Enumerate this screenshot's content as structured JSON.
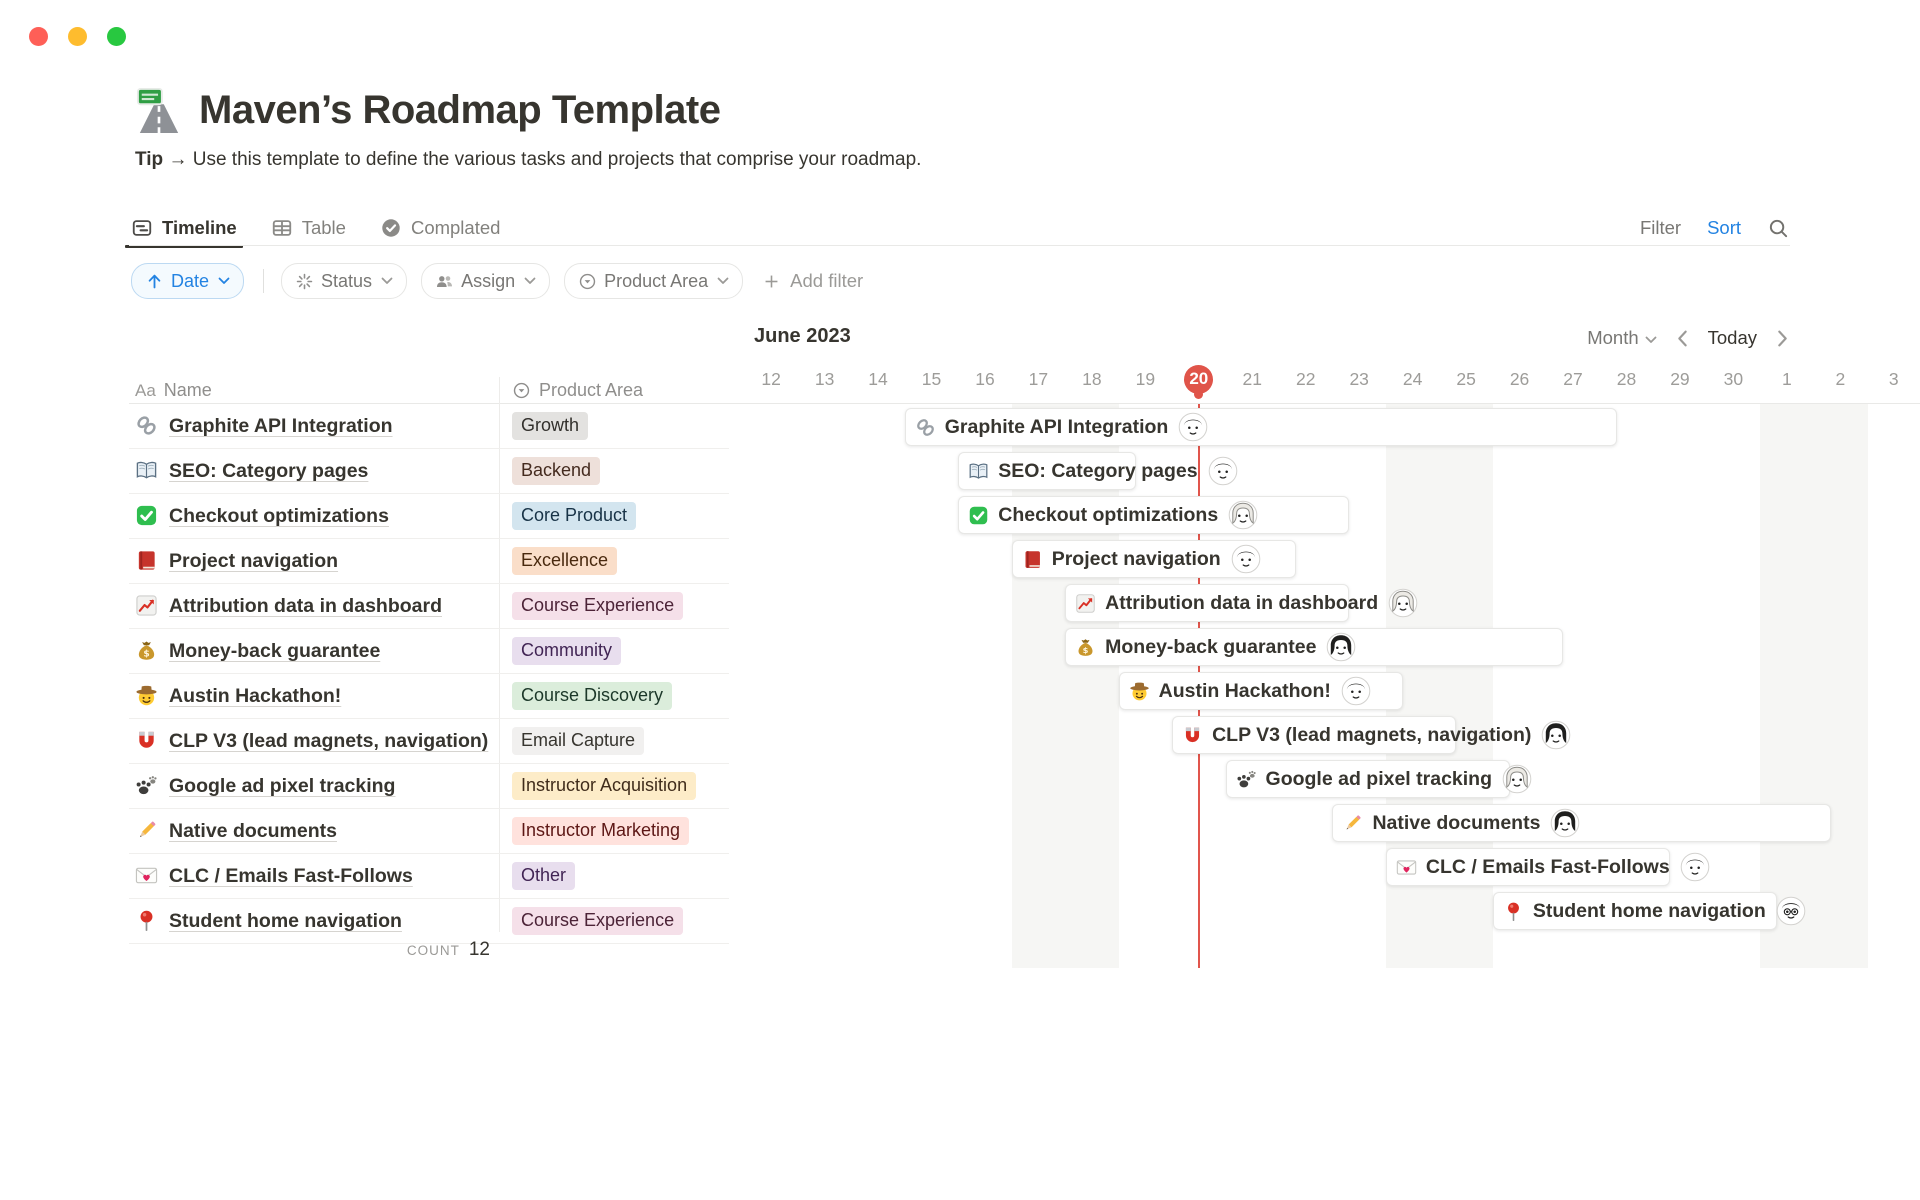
{
  "window": {
    "traffic_lights": [
      "#FE5F57",
      "#FEBC2E",
      "#28C840"
    ]
  },
  "page": {
    "emoji_icon": "motorway-emoji",
    "title": "Maven’s Roadmap Template",
    "tip_label": "Tip",
    "tip_arrow": "→",
    "tip_text": "Use this template to define the various tasks and projects that comprise your roadmap."
  },
  "view_tabs": {
    "tabs": [
      {
        "label": "Timeline",
        "icon": "timeline-view-icon",
        "active": true
      },
      {
        "label": "Table",
        "icon": "table-view-icon",
        "active": false
      },
      {
        "label": "Complated",
        "icon": "check-circle-icon",
        "active": false
      }
    ],
    "filter_label": "Filter",
    "sort_label": "Sort",
    "search_icon": "search-icon"
  },
  "filter_bar": {
    "sort_chip": {
      "label": "Date",
      "icon": "arrow-up-icon"
    },
    "chips": [
      {
        "label": "Status",
        "icon": "status-icon"
      },
      {
        "label": "Assign",
        "icon": "people-icon"
      },
      {
        "label": "Product Area",
        "icon": "select-icon"
      }
    ],
    "add_filter_label": "Add filter"
  },
  "table": {
    "name_column": {
      "icon_label": "Aa",
      "label": "Name"
    },
    "area_column": {
      "icon": "select-icon",
      "label": "Product Area"
    },
    "count_label": "COUNT",
    "count_value": "12"
  },
  "timeline": {
    "month_title": "June 2023",
    "zoom_label": "Month",
    "today_label": "Today",
    "days": [
      "12",
      "13",
      "14",
      "15",
      "16",
      "17",
      "18",
      "19",
      "20",
      "21",
      "22",
      "23",
      "24",
      "25",
      "26",
      "27",
      "28",
      "29",
      "30",
      "1",
      "2",
      "3"
    ],
    "today_index": 8,
    "weekend_indices": [
      5,
      6,
      12,
      13,
      19,
      20
    ]
  },
  "rows": [
    {
      "icon": "link-emoji",
      "name": "Graphite API Integration",
      "area": "Growth",
      "color": "gray",
      "avatar": "man",
      "start": 3,
      "span": 13
    },
    {
      "icon": "open-book-emoji",
      "name": "SEO: Category pages",
      "area": "Backend",
      "color": "brown",
      "avatar": "man",
      "start": 4,
      "span": 3
    },
    {
      "icon": "check-emoji",
      "name": "Checkout optimizations",
      "area": "Core Product",
      "color": "blue",
      "avatar": "woman-light",
      "start": 4,
      "span": 7
    },
    {
      "icon": "red-book-emoji",
      "name": "Project navigation",
      "area": "Excellence",
      "color": "orange",
      "avatar": "man",
      "start": 5,
      "span": 5
    },
    {
      "icon": "chart-up-emoji",
      "name": "Attribution data in dashboard",
      "area": "Course Experience",
      "color": "pink",
      "avatar": "woman-light",
      "start": 6,
      "span": 5
    },
    {
      "icon": "moneybag-emoji",
      "name": "Money-back guarantee",
      "area": "Community",
      "color": "purple",
      "avatar": "woman-dark",
      "start": 6,
      "span": 9
    },
    {
      "icon": "cowboy-emoji",
      "name": "Austin Hackathon!",
      "area": "Course Discovery",
      "color": "green",
      "avatar": "man",
      "start": 7,
      "span": 5
    },
    {
      "icon": "magnet-emoji",
      "name": "CLP V3 (lead magnets, navigation)",
      "area": "Email Capture",
      "color": "lightgray",
      "avatar": "woman-dark",
      "start": 8,
      "span": 5
    },
    {
      "icon": "paw-emoji",
      "name": "Google ad pixel tracking",
      "area": "Instructor Acquisition",
      "color": "yellow",
      "avatar": "woman-light",
      "start": 9,
      "span": 5
    },
    {
      "icon": "pencil-emoji",
      "name": "Native documents",
      "area": "Instructor Marketing",
      "color": "red",
      "avatar": "woman-dark",
      "start": 11,
      "span": 9
    },
    {
      "icon": "love-letter-emoji",
      "name": "CLC / Emails Fast-Follows",
      "area": "Other",
      "color": "purple",
      "avatar": "man",
      "start": 12,
      "span": 5
    },
    {
      "icon": "pushpin-emoji",
      "name": "Student home navigation",
      "area": "Course Experience",
      "color": "pink",
      "avatar": "man-glasses",
      "start": 14,
      "span": 5
    }
  ],
  "colors": {
    "accent_blue": "#2383E2",
    "today_red": "#E1554C",
    "today_circle_red": "#E05449",
    "weekend_band": "#F6F6F4",
    "badges": {
      "gray": {
        "bg": "#E3E2E0",
        "text": "#32302C"
      },
      "brown": {
        "bg": "#EEE0DA",
        "text": "#442A1E"
      },
      "blue": {
        "bg": "#D3E5EF",
        "text": "#183347"
      },
      "orange": {
        "bg": "#FADEC9",
        "text": "#49290E"
      },
      "pink": {
        "bg": "#F5E0E9",
        "text": "#4C2337"
      },
      "purple": {
        "bg": "#E8DEEE",
        "text": "#412454"
      },
      "green": {
        "bg": "#DBEDDB",
        "text": "#1C3829"
      },
      "lightgray": {
        "bg": "#F1F0EF",
        "text": "#37352F"
      },
      "yellow": {
        "bg": "#FDECC8",
        "text": "#402C1B"
      },
      "red": {
        "bg": "#FFE2DD",
        "text": "#5D1715"
      }
    }
  }
}
